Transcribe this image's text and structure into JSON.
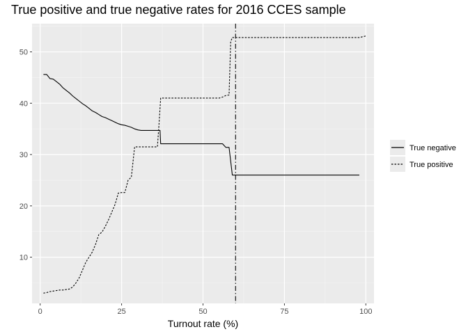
{
  "chart_data": {
    "type": "line",
    "title": "True positive and true negative rates for 2016 CCES sample",
    "xlabel": "Turnout rate (%)",
    "ylabel": "",
    "xlim": [
      -2.5,
      102.5
    ],
    "ylim": [
      1,
      55.5
    ],
    "xticks": [
      0,
      25,
      50,
      75,
      100
    ],
    "xtick_labels": [
      "0",
      "25",
      "50",
      "75",
      "100"
    ],
    "yticks": [
      10,
      20,
      30,
      40,
      50
    ],
    "ytick_labels": [
      "10",
      "20",
      "30",
      "40",
      "50"
    ],
    "grid": true,
    "legend_position": "right",
    "vline": {
      "x": 60,
      "style": "dotdash"
    },
    "series": [
      {
        "name": "True negative",
        "style": "solid",
        "x": [
          1,
          2,
          3,
          4,
          5,
          6,
          7,
          8,
          9,
          10,
          11,
          12,
          13,
          14,
          15,
          16,
          17,
          18,
          19,
          20,
          21,
          22,
          23,
          24,
          25,
          26,
          27,
          28,
          29,
          30,
          31,
          32,
          33,
          34,
          35,
          36,
          36.8,
          37,
          38,
          40,
          45,
          50,
          55,
          56,
          57,
          58,
          59,
          59.2,
          60,
          65,
          70,
          75,
          80,
          85,
          90,
          95,
          98
        ],
        "y": [
          45.6,
          45.6,
          44.8,
          44.7,
          44.2,
          43.7,
          43.0,
          42.5,
          42.0,
          41.4,
          40.9,
          40.4,
          39.9,
          39.5,
          39.0,
          38.5,
          38.2,
          37.8,
          37.4,
          37.2,
          36.9,
          36.6,
          36.3,
          36.0,
          35.8,
          35.7,
          35.5,
          35.3,
          35.0,
          34.8,
          34.7,
          34.7,
          34.7,
          34.7,
          34.7,
          34.7,
          34.7,
          32.1,
          32.1,
          32.1,
          32.1,
          32.1,
          32.1,
          32.1,
          31.4,
          31.4,
          26.0,
          26.0,
          26.0,
          26.0,
          26.0,
          26.0,
          26.0,
          26.0,
          26.0,
          26.0,
          26.0
        ]
      },
      {
        "name": "True positive",
        "style": "dotted",
        "x": [
          1,
          2,
          3,
          4,
          5,
          6,
          7,
          8,
          9,
          10,
          11,
          12,
          13,
          14,
          15,
          16,
          17,
          18,
          19,
          20,
          21,
          22,
          23,
          24,
          25,
          26,
          27,
          28,
          29,
          30,
          31,
          32,
          33,
          34,
          35,
          36,
          36.5,
          37,
          38,
          40,
          45,
          50,
          55,
          56,
          57,
          58,
          58.5,
          59,
          60,
          65,
          70,
          75,
          80,
          85,
          90,
          95,
          98,
          100
        ],
        "y": [
          3.0,
          3.1,
          3.3,
          3.4,
          3.5,
          3.6,
          3.6,
          3.7,
          3.8,
          4.2,
          5.0,
          6.0,
          7.5,
          9.0,
          10.0,
          11.0,
          12.5,
          14.4,
          14.9,
          16.0,
          17.3,
          18.8,
          20.3,
          22.5,
          22.6,
          22.6,
          25.0,
          25.6,
          31.5,
          31.5,
          31.5,
          31.5,
          31.5,
          31.5,
          31.5,
          31.5,
          36.0,
          41.0,
          41.0,
          41.0,
          41.0,
          41.0,
          41.0,
          41.2,
          41.5,
          41.6,
          52.0,
          52.8,
          52.8,
          52.8,
          52.8,
          52.8,
          52.8,
          52.8,
          52.8,
          52.8,
          52.8,
          53.1
        ]
      }
    ]
  }
}
